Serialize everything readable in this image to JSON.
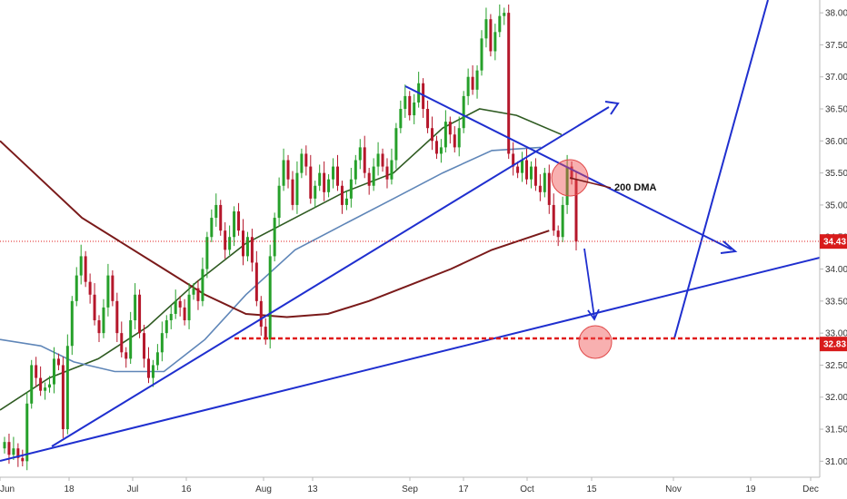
{
  "chart_data": {
    "type": "candlestick",
    "title": "",
    "xlabel": "",
    "ylabel": "",
    "ylim": [
      30.75,
      38.2
    ],
    "grid": false,
    "x_ticks": [
      "Jun",
      "18",
      "Jul",
      "16",
      "Aug",
      "13",
      "Sep",
      "17",
      "Oct",
      "15",
      "Nov",
      "19",
      "Dec"
    ],
    "y_ticks": [
      "31.00",
      "31.50",
      "32.00",
      "32.50",
      "33.00",
      "33.50",
      "34.00",
      "34.50",
      "35.00",
      "35.50",
      "36.00",
      "36.50",
      "37.00",
      "37.50",
      "38.00"
    ],
    "price_tags": [
      {
        "label": "34.43",
        "value": 34.43,
        "color": "#d81b1b"
      },
      {
        "label": "32.83",
        "value": 32.83,
        "color": "#d81b1b"
      }
    ],
    "annotations": [
      {
        "text": "200 DMA"
      }
    ],
    "colors": {
      "up": "#26a02a",
      "down": "#b5172b",
      "trendline": "#1f2fcf",
      "ma50": "#2f5b22",
      "ma100": "#5f86b8",
      "ma200": "#7a1a1a",
      "support": "#e01b1b"
    },
    "series": [
      {
        "name": "price",
        "closes": [
          31.3,
          31.1,
          31.2,
          31.05,
          31.0,
          31.9,
          32.5,
          32.3,
          32.1,
          32.15,
          32.2,
          32.6,
          32.5,
          31.5,
          32.8,
          33.5,
          33.9,
          34.2,
          33.8,
          33.6,
          33.2,
          33.0,
          33.4,
          33.9,
          33.5,
          33.0,
          32.7,
          32.6,
          33.2,
          33.6,
          33.0,
          32.6,
          32.3,
          32.5,
          32.7,
          33.0,
          33.2,
          33.3,
          33.5,
          33.4,
          33.2,
          33.6,
          33.7,
          33.5,
          34.0,
          34.5,
          34.8,
          35.0,
          34.6,
          34.3,
          34.5,
          34.9,
          34.6,
          34.2,
          34.5,
          34.1,
          33.5,
          33.1,
          32.9,
          34.2,
          34.8,
          35.3,
          35.7,
          35.4,
          35.0,
          35.5,
          35.8,
          35.6,
          35.1,
          35.3,
          35.5,
          35.2,
          35.4,
          35.6,
          35.3,
          35.0,
          35.1,
          35.4,
          35.7,
          35.9,
          35.5,
          35.3,
          35.6,
          35.8,
          35.6,
          35.4,
          35.7,
          36.2,
          36.5,
          36.7,
          36.4,
          36.6,
          36.9,
          36.5,
          36.2,
          36.0,
          35.8,
          35.9,
          36.3,
          36.1,
          35.9,
          36.2,
          36.7,
          37.0,
          36.8,
          37.1,
          37.6,
          37.9,
          37.4,
          37.7,
          37.95,
          38.0,
          35.8,
          35.6,
          35.5,
          35.7,
          35.4,
          35.6,
          35.3,
          35.2,
          35.5,
          35.0,
          34.6,
          34.5,
          35.0,
          35.6,
          35.4,
          34.43
        ]
      },
      {
        "name": "ma50",
        "points": [
          [
            0.0,
            31.8
          ],
          [
            0.06,
            32.3
          ],
          [
            0.12,
            32.6
          ],
          [
            0.18,
            33.1
          ],
          [
            0.24,
            33.8
          ],
          [
            0.3,
            34.4
          ],
          [
            0.36,
            34.8
          ],
          [
            0.42,
            35.2
          ],
          [
            0.48,
            35.5
          ],
          [
            0.54,
            36.2
          ],
          [
            0.585,
            36.5
          ],
          [
            0.63,
            36.4
          ],
          [
            0.685,
            36.1
          ]
        ]
      },
      {
        "name": "ma100",
        "points": [
          [
            0.0,
            32.9
          ],
          [
            0.05,
            32.8
          ],
          [
            0.09,
            32.55
          ],
          [
            0.14,
            32.4
          ],
          [
            0.2,
            32.4
          ],
          [
            0.25,
            32.9
          ],
          [
            0.3,
            33.6
          ],
          [
            0.36,
            34.3
          ],
          [
            0.42,
            34.7
          ],
          [
            0.48,
            35.1
          ],
          [
            0.54,
            35.5
          ],
          [
            0.6,
            35.85
          ],
          [
            0.66,
            35.9
          ]
        ]
      },
      {
        "name": "ma200",
        "points": [
          [
            0.0,
            36.0
          ],
          [
            0.05,
            35.4
          ],
          [
            0.1,
            34.8
          ],
          [
            0.15,
            34.4
          ],
          [
            0.2,
            34.0
          ],
          [
            0.25,
            33.6
          ],
          [
            0.3,
            33.3
          ],
          [
            0.35,
            33.25
          ],
          [
            0.4,
            33.3
          ],
          [
            0.45,
            33.5
          ],
          [
            0.5,
            33.75
          ],
          [
            0.55,
            34.0
          ],
          [
            0.6,
            34.3
          ],
          [
            0.67,
            34.6
          ]
        ]
      }
    ]
  }
}
